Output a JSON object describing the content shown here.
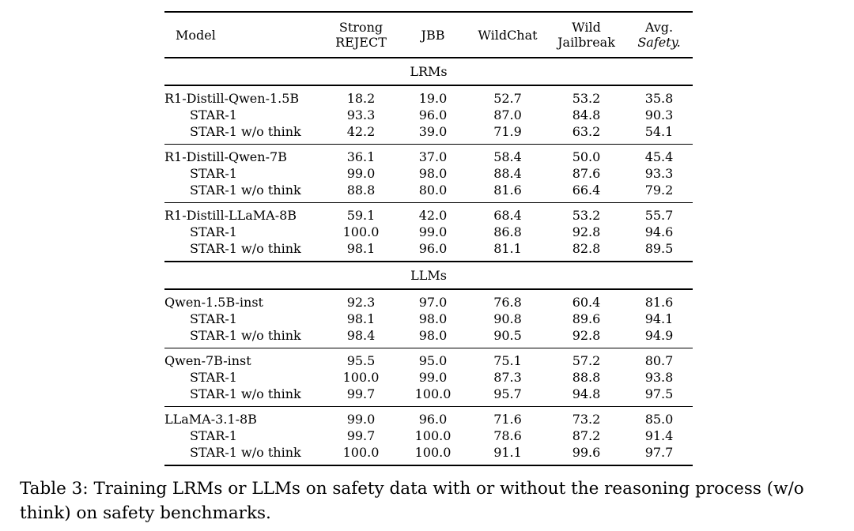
{
  "colors": {
    "text": "#000000",
    "background": "#ffffff",
    "rule": "#000000"
  },
  "table": {
    "header": {
      "model_label": "Model",
      "columns": [
        {
          "line1": "Strong",
          "line2": "REJECT"
        },
        {
          "line1": "JBB"
        },
        {
          "line1": "WildChat"
        },
        {
          "line1": "Wild",
          "line2": "Jailbreak"
        },
        {
          "line1": "Avg.",
          "line2": "Safety."
        }
      ]
    },
    "sections": [
      {
        "label": "LRMs",
        "groups": [
          {
            "rows": [
              {
                "model": "R1-Distill-Qwen-1.5B",
                "indent": false,
                "values": [
                  "18.2",
                  "19.0",
                  "52.7",
                  "53.2",
                  "35.8"
                ]
              },
              {
                "model": "STAR-1",
                "indent": true,
                "values": [
                  "93.3",
                  "96.0",
                  "87.0",
                  "84.8",
                  "90.3"
                ]
              },
              {
                "model": "STAR-1 w/o think",
                "indent": true,
                "values": [
                  "42.2",
                  "39.0",
                  "71.9",
                  "63.2",
                  "54.1"
                ]
              }
            ]
          },
          {
            "rows": [
              {
                "model": "R1-Distill-Qwen-7B",
                "indent": false,
                "values": [
                  "36.1",
                  "37.0",
                  "58.4",
                  "50.0",
                  "45.4"
                ]
              },
              {
                "model": "STAR-1",
                "indent": true,
                "values": [
                  "99.0",
                  "98.0",
                  "88.4",
                  "87.6",
                  "93.3"
                ]
              },
              {
                "model": "STAR-1 w/o think",
                "indent": true,
                "values": [
                  "88.8",
                  "80.0",
                  "81.6",
                  "66.4",
                  "79.2"
                ]
              }
            ]
          },
          {
            "rows": [
              {
                "model": "R1-Distill-LLaMA-8B",
                "indent": false,
                "values": [
                  "59.1",
                  "42.0",
                  "68.4",
                  "53.2",
                  "55.7"
                ]
              },
              {
                "model": "STAR-1",
                "indent": true,
                "values": [
                  "100.0",
                  "99.0",
                  "86.8",
                  "92.8",
                  "94.6"
                ]
              },
              {
                "model": "STAR-1 w/o think",
                "indent": true,
                "values": [
                  "98.1",
                  "96.0",
                  "81.1",
                  "82.8",
                  "89.5"
                ]
              }
            ]
          }
        ]
      },
      {
        "label": "LLMs",
        "groups": [
          {
            "rows": [
              {
                "model": "Qwen-1.5B-inst",
                "indent": false,
                "values": [
                  "92.3",
                  "97.0",
                  "76.8",
                  "60.4",
                  "81.6"
                ]
              },
              {
                "model": "STAR-1",
                "indent": true,
                "values": [
                  "98.1",
                  "98.0",
                  "90.8",
                  "89.6",
                  "94.1"
                ]
              },
              {
                "model": "STAR-1 w/o think",
                "indent": true,
                "values": [
                  "98.4",
                  "98.0",
                  "90.5",
                  "92.8",
                  "94.9"
                ]
              }
            ]
          },
          {
            "rows": [
              {
                "model": "Qwen-7B-inst",
                "indent": false,
                "values": [
                  "95.5",
                  "95.0",
                  "75.1",
                  "57.2",
                  "80.7"
                ]
              },
              {
                "model": "STAR-1",
                "indent": true,
                "values": [
                  "100.0",
                  "99.0",
                  "87.3",
                  "88.8",
                  "93.8"
                ]
              },
              {
                "model": "STAR-1 w/o think",
                "indent": true,
                "values": [
                  "99.7",
                  "100.0",
                  "95.7",
                  "94.8",
                  "97.5"
                ]
              }
            ]
          },
          {
            "rows": [
              {
                "model": "LLaMA-3.1-8B",
                "indent": false,
                "values": [
                  "99.0",
                  "96.0",
                  "71.6",
                  "73.2",
                  "85.0"
                ]
              },
              {
                "model": "STAR-1",
                "indent": true,
                "values": [
                  "99.7",
                  "100.0",
                  "78.6",
                  "87.2",
                  "91.4"
                ]
              },
              {
                "model": "STAR-1 w/o think",
                "indent": true,
                "values": [
                  "100.0",
                  "100.0",
                  "91.1",
                  "99.6",
                  "97.7"
                ]
              }
            ]
          }
        ]
      }
    ]
  },
  "caption": "Table 3: Training LRMs or LLMs on safety data with or without the reasoning process (w/o think) on safety benchmarks."
}
